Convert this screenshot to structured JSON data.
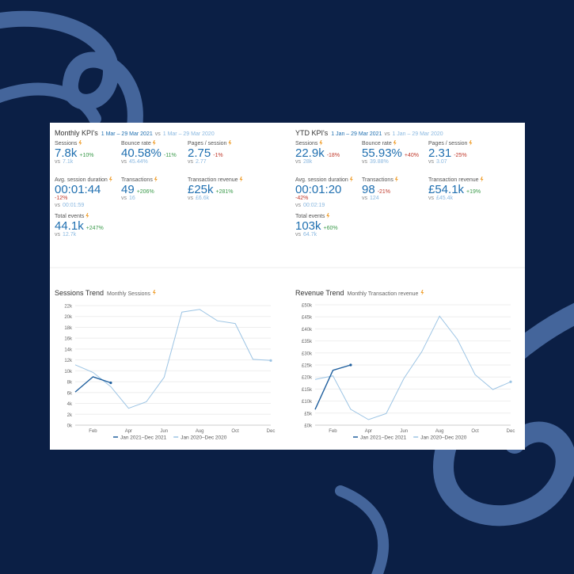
{
  "kpis": [
    {
      "title": "Monthly KPI's",
      "period": "1 Mar – 29 Mar 2021",
      "vs": "vs",
      "comparison_period": "1 Mar – 29 Mar 2020",
      "metrics": [
        {
          "label": "Sessions",
          "value": "7.8k",
          "change": "+10%",
          "change_color": "#3a9a4a",
          "comparison": "7.1k"
        },
        {
          "label": "Bounce rate",
          "value": "40.58%",
          "change": "-11%",
          "change_color": "#3a9a4a",
          "comparison": "45.44%"
        },
        {
          "label": "Pages / session",
          "value": "2.75",
          "change": "-1%",
          "change_color": "#c0392b",
          "comparison": "2.77"
        },
        {
          "label": "Avg. session duration",
          "value": "00:01:44",
          "change": "-12%",
          "change_color": "#c0392b",
          "comparison": "00:01:59"
        },
        {
          "label": "Transactions",
          "value": "49",
          "change": "+206%",
          "change_color": "#3a9a4a",
          "comparison": "16"
        },
        {
          "label": "Transaction revenue",
          "value": "£25k",
          "change": "+281%",
          "change_color": "#3a9a4a",
          "comparison": "£6.6k"
        },
        {
          "label": "Total events",
          "value": "44.1k",
          "change": "+247%",
          "change_color": "#3a9a4a",
          "comparison": "12.7k"
        }
      ]
    },
    {
      "title": "YTD KPI's",
      "period": "1 Jan – 29 Mar 2021",
      "vs": "vs",
      "comparison_period": "1 Jan – 29 Mar 2020",
      "metrics": [
        {
          "label": "Sessions",
          "value": "22.9k",
          "change": "-18%",
          "change_color": "#c0392b",
          "comparison": "28k"
        },
        {
          "label": "Bounce rate",
          "value": "55.93%",
          "change": "+40%",
          "change_color": "#c0392b",
          "comparison": "39.88%"
        },
        {
          "label": "Pages / session",
          "value": "2.31",
          "change": "-25%",
          "change_color": "#c0392b",
          "comparison": "3.07"
        },
        {
          "label": "Avg. session duration",
          "value": "00:01:20",
          "change": "-42%",
          "change_color": "#c0392b",
          "comparison": "00:02:19"
        },
        {
          "label": "Transactions",
          "value": "98",
          "change": "-21%",
          "change_color": "#c0392b",
          "comparison": "124"
        },
        {
          "label": "Transaction revenue",
          "value": "£54.1k",
          "change": "+19%",
          "change_color": "#3a9a4a",
          "comparison": "£45.4k"
        },
        {
          "label": "Total events",
          "value": "103k",
          "change": "+60%",
          "change_color": "#3a9a4a",
          "comparison": "64.7k"
        }
      ]
    }
  ],
  "chart_data": [
    {
      "type": "line",
      "title": "Sessions Trend",
      "subtitle": "Monthly Sessions",
      "categories": [
        null,
        "Feb",
        null,
        "Apr",
        null,
        "Jun",
        null,
        "Aug",
        null,
        "Oct",
        null,
        "Dec"
      ],
      "series": [
        {
          "name": "Jan 2021–Dec 2021",
          "color": "#1f5f9e",
          "values": [
            6100,
            8900,
            7800,
            null,
            null,
            null,
            null,
            null,
            null,
            null,
            null,
            null
          ]
        },
        {
          "name": "Jan 2020–Dec 2020",
          "color": "#9cc4e4",
          "values": [
            11100,
            9700,
            7100,
            3100,
            4300,
            8800,
            20800,
            21300,
            19200,
            18700,
            12100,
            11900
          ]
        }
      ],
      "ylim": [
        0,
        22000
      ],
      "yticks": [
        {
          "value": 0,
          "label": "0k"
        },
        {
          "value": 2000,
          "label": "2k"
        },
        {
          "value": 4000,
          "label": "4k"
        },
        {
          "value": 6000,
          "label": "6k"
        },
        {
          "value": 8000,
          "label": "8k"
        },
        {
          "value": 10000,
          "label": "10k"
        },
        {
          "value": 12000,
          "label": "12k"
        },
        {
          "value": 14000,
          "label": "14k"
        },
        {
          "value": 16000,
          "label": "16k"
        },
        {
          "value": 18000,
          "label": "18k"
        },
        {
          "value": 20000,
          "label": "20k"
        },
        {
          "value": 22000,
          "label": "22k"
        }
      ],
      "grid": true
    },
    {
      "type": "line",
      "title": "Revenue Trend",
      "subtitle": "Monthly Transaction revenue",
      "categories": [
        null,
        "Feb",
        null,
        "Apr",
        null,
        "Jun",
        null,
        "Aug",
        null,
        "Oct",
        null,
        "Dec"
      ],
      "series": [
        {
          "name": "Jan 2021–Dec 2021",
          "color": "#1f5f9e",
          "values": [
            6500,
            22800,
            25000,
            null,
            null,
            null,
            null,
            null,
            null,
            null,
            null,
            null
          ]
        },
        {
          "name": "Jan 2020–Dec 2020",
          "color": "#9cc4e4",
          "values": [
            19000,
            20500,
            6600,
            2300,
            4800,
            19500,
            30500,
            45300,
            35700,
            21000,
            14800,
            18000
          ]
        }
      ],
      "ylim": [
        0,
        50000
      ],
      "yticks": [
        {
          "value": 0,
          "label": "£0k"
        },
        {
          "value": 5000,
          "label": "£5k"
        },
        {
          "value": 10000,
          "label": "£10k"
        },
        {
          "value": 15000,
          "label": "£15k"
        },
        {
          "value": 20000,
          "label": "£20k"
        },
        {
          "value": 25000,
          "label": "£25k"
        },
        {
          "value": 30000,
          "label": "£30k"
        },
        {
          "value": 35000,
          "label": "£35k"
        },
        {
          "value": 40000,
          "label": "£40k"
        },
        {
          "value": 45000,
          "label": "£45k"
        },
        {
          "value": 50000,
          "label": "£50k"
        }
      ],
      "grid": true
    }
  ]
}
